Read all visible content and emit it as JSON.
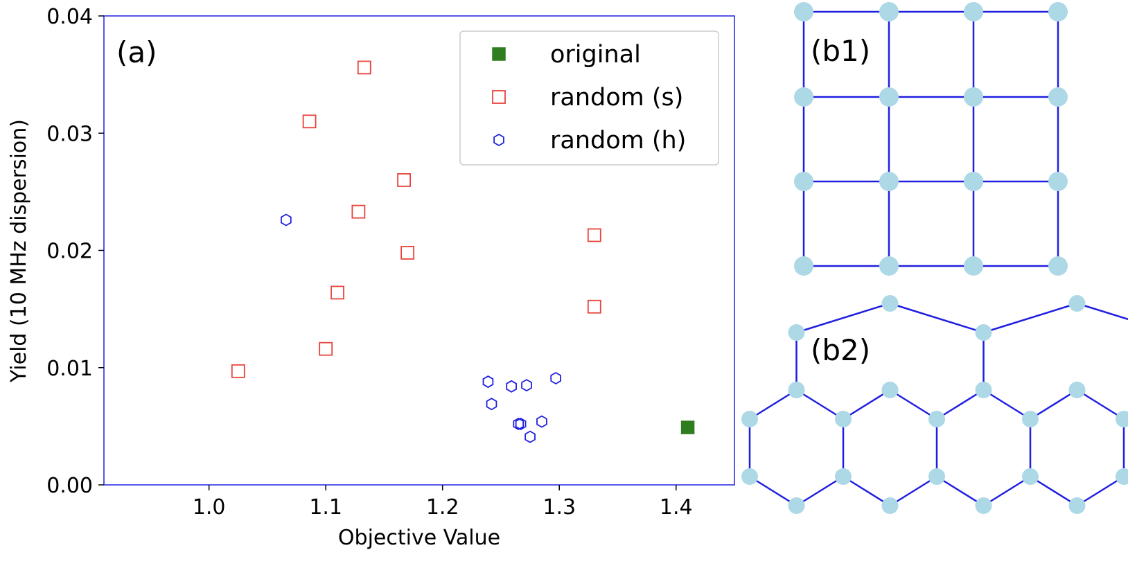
{
  "chart_data": [
    {
      "type": "scatter",
      "panel_label": "(a)",
      "xlabel": "Objective Value",
      "ylabel": "Yield (10 MHz dispersion)",
      "xlim": [
        0.91,
        1.45
      ],
      "ylim": [
        0.0,
        0.04
      ],
      "x_ticks": [
        1.0,
        1.1,
        1.2,
        1.3,
        1.4
      ],
      "x_tick_labels": [
        "1.0",
        "1.1",
        "1.2",
        "1.3",
        "1.4"
      ],
      "y_ticks": [
        0.0,
        0.01,
        0.02,
        0.03,
        0.04
      ],
      "y_tick_labels": [
        "0.00",
        "0.01",
        "0.02",
        "0.03",
        "0.04"
      ],
      "grid": false,
      "legend_position": "top-right",
      "series": [
        {
          "name": "original",
          "marker": "filled-square",
          "color": "#2e7d1f",
          "points": [
            {
              "x": 1.41,
              "y": 0.0049
            }
          ]
        },
        {
          "name": "random (s)",
          "marker": "open-square",
          "color": "#e8423a",
          "points": [
            {
              "x": 1.025,
              "y": 0.0097
            },
            {
              "x": 1.086,
              "y": 0.031
            },
            {
              "x": 1.1,
              "y": 0.0116
            },
            {
              "x": 1.11,
              "y": 0.0164
            },
            {
              "x": 1.128,
              "y": 0.0233
            },
            {
              "x": 1.133,
              "y": 0.0356
            },
            {
              "x": 1.167,
              "y": 0.026
            },
            {
              "x": 1.17,
              "y": 0.0198
            },
            {
              "x": 1.33,
              "y": 0.0213
            },
            {
              "x": 1.33,
              "y": 0.0152
            }
          ]
        },
        {
          "name": "random (h)",
          "marker": "open-hexagon",
          "color": "#1f1fe0",
          "points": [
            {
              "x": 1.066,
              "y": 0.0226
            },
            {
              "x": 1.239,
              "y": 0.0088
            },
            {
              "x": 1.242,
              "y": 0.0069
            },
            {
              "x": 1.259,
              "y": 0.0084
            },
            {
              "x": 1.265,
              "y": 0.0052
            },
            {
              "x": 1.267,
              "y": 0.0052
            },
            {
              "x": 1.272,
              "y": 0.0085
            },
            {
              "x": 1.275,
              "y": 0.0041
            },
            {
              "x": 1.285,
              "y": 0.0054
            },
            {
              "x": 1.297,
              "y": 0.0091
            }
          ]
        }
      ]
    }
  ],
  "diagrams": {
    "square_lattice": {
      "label": "(b1)",
      "rows": 4,
      "cols": 4,
      "node_color": "#add8e6",
      "edge_color": "#1f1fe0"
    },
    "hex_lattice": {
      "label": "(b2)",
      "node_color": "#add8e6",
      "edge_color": "#1f1fe0"
    }
  }
}
